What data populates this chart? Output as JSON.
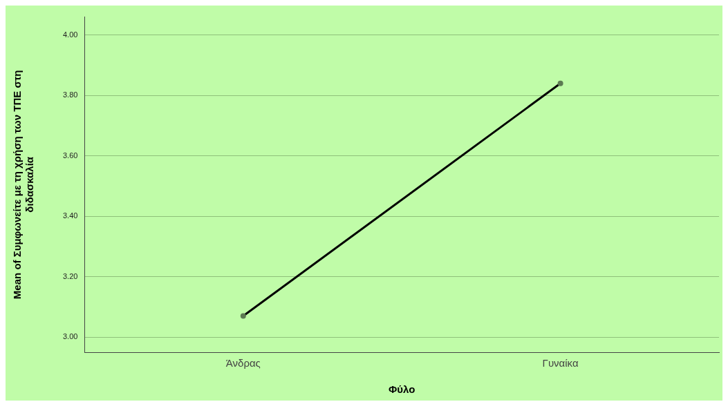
{
  "chart_data": {
    "type": "line",
    "xlabel": "Φύλο",
    "ylabel": "Mean of Συμφωνείτε με τη χρήση των ΤΠΕ στη διδασκαλία",
    "categories": [
      "Άνδρας",
      "Γυναίκα"
    ],
    "series": [
      {
        "color": "#000000",
        "values": [
          3.07,
          3.84
        ]
      }
    ],
    "ylim": [
      2.95,
      4.06
    ],
    "yticks": [
      {
        "value": 3,
        "label": "3.00"
      },
      {
        "value": 3.2,
        "label": "3.20"
      },
      {
        "value": 3.4,
        "label": "3.40"
      },
      {
        "value": 3.6,
        "label": "3.60"
      },
      {
        "value": 3.8,
        "label": "3.80"
      },
      {
        "value": 4,
        "label": "4.00"
      }
    ],
    "grid": "y",
    "legend": false,
    "marker": "circle",
    "line_style": "solid"
  }
}
